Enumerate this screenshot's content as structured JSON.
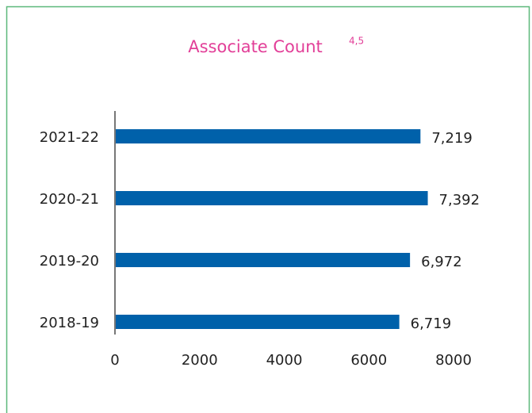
{
  "chart_data": {
    "type": "bar",
    "orientation": "horizontal",
    "title": "Associate Count",
    "title_superscript": "4,5",
    "categories": [
      "2021-22",
      "2020-21",
      "2019-20",
      "2018-19"
    ],
    "values": [
      7219,
      7392,
      6972,
      6719
    ],
    "value_labels": [
      "7,219",
      "7,392",
      "6,972",
      "6,719"
    ],
    "color": "#0061aa",
    "xlim": [
      0,
      8000
    ],
    "xticks": [
      0,
      2000,
      4000,
      6000,
      8000
    ],
    "grid": false
  }
}
